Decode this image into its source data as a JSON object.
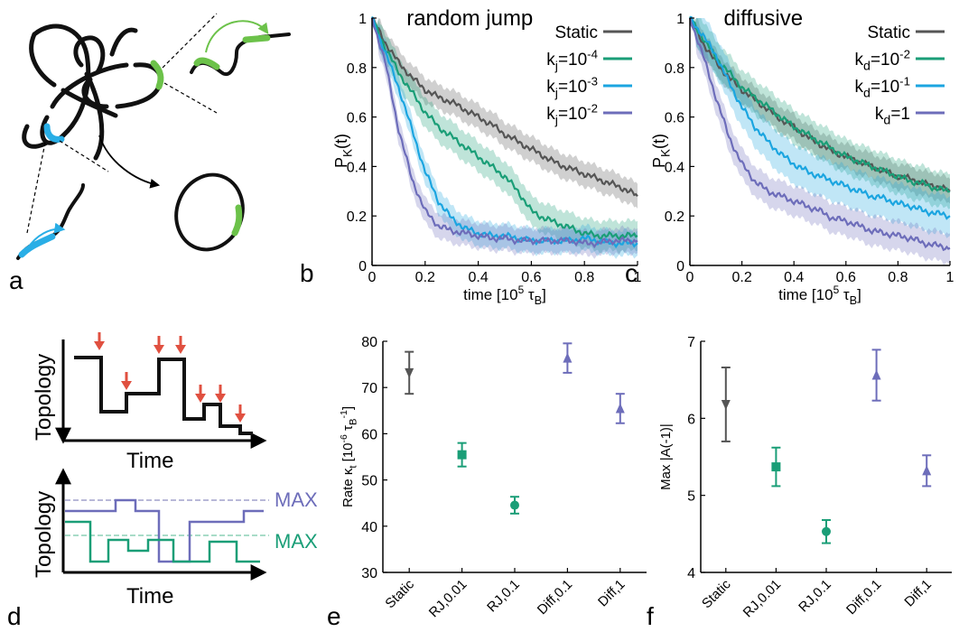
{
  "panel_labels": {
    "a": "a",
    "b": "b",
    "c": "c",
    "d": "d",
    "e": "e",
    "f": "f"
  },
  "colors": {
    "static": "#555555",
    "green": "#1a9e77",
    "cyan": "#1ba5e0",
    "purple": "#6d6dba",
    "red_arrow": "#e05040",
    "knot_green": "#6cc24a",
    "knot_cyan": "#29aee6"
  },
  "chart_data": [
    {
      "id": "b",
      "type": "line",
      "title": "random jump",
      "xlabel": "time [10^5 τ_B]",
      "ylabel": "P_K(t)",
      "xlim": [
        0,
        1
      ],
      "ylim": [
        0,
        1
      ],
      "xticks": [
        "0",
        "0.2",
        "0.4",
        "0.6",
        "0.8",
        "1"
      ],
      "yticks": [
        "0",
        "0.2",
        "0.4",
        "0.6",
        "0.8",
        "1"
      ],
      "legend_position": "top-right",
      "x": [
        0,
        0.05,
        0.1,
        0.15,
        0.2,
        0.25,
        0.3,
        0.35,
        0.4,
        0.45,
        0.5,
        0.55,
        0.6,
        0.65,
        0.7,
        0.75,
        0.8,
        0.85,
        0.9,
        0.95,
        1.0
      ],
      "series": [
        {
          "name": "Static",
          "color_key": "static",
          "band": 0.05,
          "values": [
            1.0,
            0.9,
            0.82,
            0.76,
            0.71,
            0.68,
            0.66,
            0.63,
            0.6,
            0.57,
            0.53,
            0.5,
            0.47,
            0.44,
            0.41,
            0.39,
            0.37,
            0.35,
            0.33,
            0.31,
            0.28
          ]
        },
        {
          "name": "k_j=10^-4",
          "color_key": "green",
          "band": 0.06,
          "values": [
            1.0,
            0.88,
            0.78,
            0.7,
            0.62,
            0.56,
            0.52,
            0.48,
            0.44,
            0.4,
            0.36,
            0.3,
            0.22,
            0.19,
            0.17,
            0.15,
            0.13,
            0.12,
            0.12,
            0.12,
            0.12
          ]
        },
        {
          "name": "k_j=10^-3",
          "color_key": "cyan",
          "band": 0.05,
          "values": [
            1.0,
            0.86,
            0.72,
            0.55,
            0.38,
            0.26,
            0.19,
            0.15,
            0.13,
            0.12,
            0.12,
            0.11,
            0.1,
            0.1,
            0.1,
            0.1,
            0.11,
            0.1,
            0.09,
            0.09,
            0.09
          ]
        },
        {
          "name": "k_j=10^-2",
          "color_key": "purple",
          "band": 0.05,
          "values": [
            1.0,
            0.82,
            0.55,
            0.35,
            0.22,
            0.16,
            0.14,
            0.13,
            0.12,
            0.11,
            0.11,
            0.1,
            0.1,
            0.1,
            0.1,
            0.1,
            0.09,
            0.09,
            0.1,
            0.1,
            0.1
          ]
        }
      ],
      "legend": [
        "Static",
        "k_j=10^-4",
        "k_j=10^-3",
        "k_j=10^-2"
      ]
    },
    {
      "id": "c",
      "type": "line",
      "title": "diffusive",
      "xlabel": "time [10^5 τ_B]",
      "ylabel": "P_K(t)",
      "xlim": [
        0,
        1
      ],
      "ylim": [
        0,
        1
      ],
      "xticks": [
        "0",
        "0.2",
        "0.4",
        "0.6",
        "0.8",
        "1"
      ],
      "yticks": [
        "0",
        "0.2",
        "0.4",
        "0.6",
        "0.8",
        "1"
      ],
      "legend_position": "top-right",
      "x": [
        0,
        0.05,
        0.1,
        0.15,
        0.2,
        0.25,
        0.3,
        0.35,
        0.4,
        0.45,
        0.5,
        0.55,
        0.6,
        0.65,
        0.7,
        0.75,
        0.8,
        0.85,
        0.9,
        0.95,
        1.0
      ],
      "series": [
        {
          "name": "Static",
          "color_key": "static",
          "band": 0.05,
          "values": [
            1.0,
            0.9,
            0.82,
            0.76,
            0.71,
            0.67,
            0.63,
            0.59,
            0.56,
            0.52,
            0.49,
            0.46,
            0.44,
            0.42,
            0.4,
            0.38,
            0.36,
            0.35,
            0.33,
            0.32,
            0.3
          ]
        },
        {
          "name": "k_d=10^-2",
          "color_key": "green",
          "band": 0.07,
          "values": [
            1.0,
            0.92,
            0.84,
            0.78,
            0.72,
            0.68,
            0.64,
            0.6,
            0.56,
            0.53,
            0.5,
            0.47,
            0.44,
            0.42,
            0.4,
            0.38,
            0.36,
            0.34,
            0.33,
            0.31,
            0.3
          ]
        },
        {
          "name": "k_d=10^-1",
          "color_key": "cyan",
          "band": 0.08,
          "values": [
            1.0,
            0.93,
            0.85,
            0.74,
            0.64,
            0.56,
            0.5,
            0.45,
            0.41,
            0.38,
            0.36,
            0.34,
            0.32,
            0.3,
            0.28,
            0.27,
            0.25,
            0.24,
            0.22,
            0.21,
            0.2
          ]
        },
        {
          "name": "k_d=1",
          "color_key": "purple",
          "band": 0.06,
          "values": [
            1.0,
            0.85,
            0.68,
            0.52,
            0.41,
            0.34,
            0.3,
            0.28,
            0.26,
            0.24,
            0.22,
            0.19,
            0.18,
            0.16,
            0.14,
            0.13,
            0.12,
            0.11,
            0.09,
            0.08,
            0.07
          ]
        }
      ],
      "legend": [
        "Static",
        "k_d=10^-2",
        "k_d=10^-1",
        "k_d=1"
      ]
    },
    {
      "id": "e",
      "type": "scatter",
      "ylabel": "Rate κ_t [10^-6 τ_B^-1]",
      "categories": [
        "Static",
        "RJ,0.01",
        "RJ,0.1",
        "Diff,0.1",
        "Diff,1"
      ],
      "ylim": [
        30,
        85
      ],
      "yticks": [
        "30",
        "40",
        "50",
        "60",
        "70",
        "80"
      ],
      "points": [
        {
          "category": "Static",
          "value": 77.5,
          "err": 5.0,
          "marker": "triangle-down",
          "color_key": "static"
        },
        {
          "category": "RJ,0.01",
          "value": 58,
          "err": 2.8,
          "marker": "square",
          "color_key": "green"
        },
        {
          "category": "RJ,0.1",
          "value": 46,
          "err": 2.0,
          "marker": "circle",
          "color_key": "green"
        },
        {
          "category": "Diff,0.1",
          "value": 81,
          "err": 3.5,
          "marker": "triangle-up",
          "color_key": "purple"
        },
        {
          "category": "Diff,1",
          "value": 69,
          "err": 3.5,
          "marker": "triangle-up",
          "color_key": "purple"
        }
      ]
    },
    {
      "id": "f",
      "type": "scatter",
      "ylabel": "Max |A(-1)|",
      "categories": [
        "Static",
        "RJ,0.01",
        "RJ,0.1",
        "Diff,0.1",
        "Diff,1"
      ],
      "ylim": [
        4,
        7
      ],
      "yticks": [
        "4",
        "5",
        "6",
        "7"
      ],
      "points": [
        {
          "category": "Static",
          "value": 6.18,
          "err": 0.48,
          "marker": "triangle-down",
          "color_key": "static"
        },
        {
          "category": "RJ,0.01",
          "value": 5.37,
          "err": 0.25,
          "marker": "square",
          "color_key": "green"
        },
        {
          "category": "RJ,0.1",
          "value": 4.53,
          "err": 0.15,
          "marker": "circle",
          "color_key": "green"
        },
        {
          "category": "Diff,0.1",
          "value": 6.56,
          "err": 0.33,
          "marker": "triangle-up",
          "color_key": "purple"
        },
        {
          "category": "Diff,1",
          "value": 5.32,
          "err": 0.2,
          "marker": "triangle-up",
          "color_key": "purple"
        }
      ]
    }
  ],
  "panel_d": {
    "top": {
      "ylabel": "Topology",
      "xlabel": "Time"
    },
    "bottom": {
      "ylabel": "Topology",
      "xlabel": "Time",
      "max_purple": "MAX",
      "max_green": "MAX"
    }
  }
}
